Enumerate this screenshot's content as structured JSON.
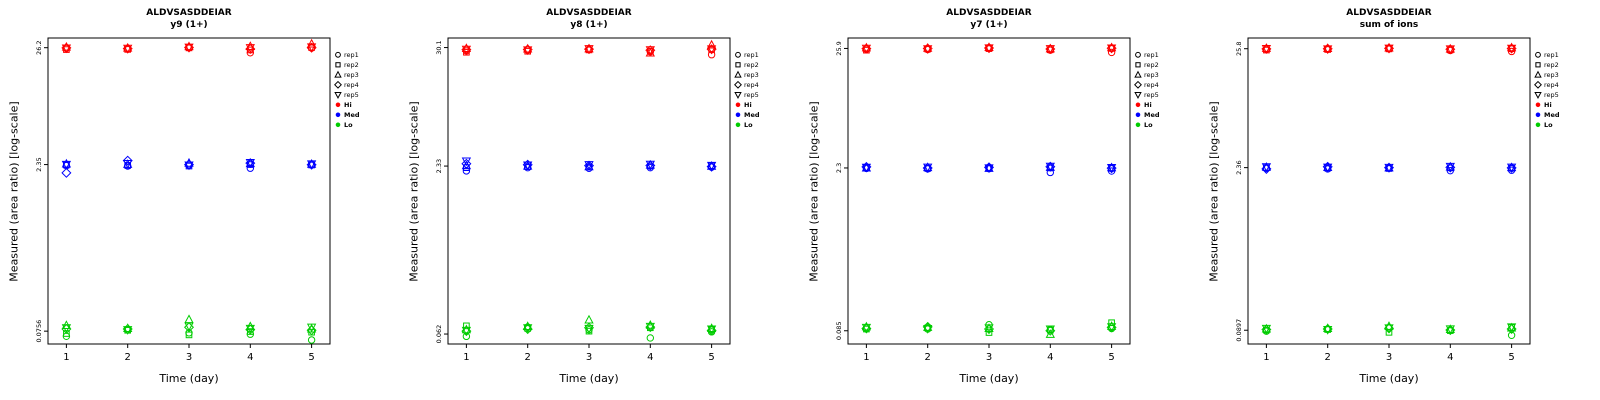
{
  "page": {
    "background": "#FFFFFF"
  },
  "legend": {
    "shape_items": [
      {
        "label": "rep1",
        "symbol": "circle"
      },
      {
        "label": "rep2",
        "symbol": "square"
      },
      {
        "label": "rep3",
        "symbol": "triangle-up"
      },
      {
        "label": "rep4",
        "symbol": "diamond"
      },
      {
        "label": "rep5",
        "symbol": "triangle-down"
      }
    ],
    "color_items": [
      {
        "label": "Hi",
        "color": "#FF0000"
      },
      {
        "label": "Med",
        "color": "#0000FF"
      },
      {
        "label": "Lo",
        "color": "#00CC00"
      }
    ]
  },
  "chart_data": [
    {
      "type": "scatter",
      "title": "ALDVSASDDEIAR",
      "subtitle": "y9 (1+)",
      "xlabel": "Time (day)",
      "ylabel": "Measured (area ratio) [log-scale]",
      "x": [
        1,
        2,
        3,
        4,
        5
      ],
      "xlim": [
        0.7,
        5.3
      ],
      "ylim": [
        0.058,
        32
      ],
      "y_scale": "log",
      "grid": false,
      "legend_position": "right",
      "y_ticks": [
        26.2,
        2.35,
        0.0756
      ],
      "y_tick_labels": [
        "26.2",
        "2.35",
        "0.0756"
      ],
      "groups": [
        {
          "name": "Hi",
          "color": "#FF0000",
          "reps": [
            {
              "name": "rep1",
              "symbol": "circle",
              "values": [
                25.8,
                25.6,
                26.4,
                23.6,
                26.0
              ]
            },
            {
              "name": "rep2",
              "symbol": "square",
              "values": [
                25.2,
                25.3,
                26.1,
                25.0,
                26.3
              ]
            },
            {
              "name": "rep3",
              "symbol": "triangle-up",
              "values": [
                26.5,
                26.0,
                26.8,
                26.9,
                28.3
              ]
            },
            {
              "name": "rep4",
              "symbol": "diamond",
              "values": [
                26.1,
                25.7,
                26.3,
                25.5,
                26.2
              ]
            },
            {
              "name": "rep5",
              "symbol": "triangle-down",
              "values": [
                26.0,
                25.9,
                26.5,
                26.2,
                26.6
              ]
            }
          ]
        },
        {
          "name": "Med",
          "color": "#0000FF",
          "reps": [
            {
              "name": "rep1",
              "symbol": "circle",
              "values": [
                2.3,
                2.28,
                2.32,
                2.18,
                2.36
              ]
            },
            {
              "name": "rep2",
              "symbol": "square",
              "values": [
                2.33,
                2.31,
                2.28,
                2.35,
                2.33
              ]
            },
            {
              "name": "rep3",
              "symbol": "triangle-up",
              "values": [
                2.38,
                2.36,
                2.42,
                2.4,
                2.37
              ]
            },
            {
              "name": "rep4",
              "symbol": "diamond",
              "values": [
                1.98,
                2.55,
                2.35,
                2.42,
                2.34
              ]
            },
            {
              "name": "rep5",
              "symbol": "triangle-down",
              "values": [
                2.36,
                2.4,
                2.33,
                2.45,
                2.38
              ]
            }
          ]
        },
        {
          "name": "Lo",
          "color": "#00CC00",
          "reps": [
            {
              "name": "rep1",
              "symbol": "circle",
              "values": [
                0.068,
                0.078,
                0.073,
                0.071,
                0.063
              ]
            },
            {
              "name": "rep2",
              "symbol": "square",
              "values": [
                0.072,
                0.077,
                0.07,
                0.075,
                0.074
              ]
            },
            {
              "name": "rep3",
              "symbol": "triangle-up",
              "values": [
                0.085,
                0.08,
                0.096,
                0.083,
                0.079
              ]
            },
            {
              "name": "rep4",
              "symbol": "diamond",
              "values": [
                0.079,
                0.079,
                0.082,
                0.078,
                0.077
              ]
            },
            {
              "name": "rep5",
              "symbol": "triangle-down",
              "values": [
                0.081,
                0.078,
                0.084,
                0.08,
                0.082
              ]
            }
          ]
        }
      ]
    },
    {
      "type": "scatter",
      "title": "ALDVSASDDEIAR",
      "subtitle": "y8 (1+)",
      "xlabel": "Time (day)",
      "ylabel": "Measured (area ratio) [log-scale]",
      "x": [
        1,
        2,
        3,
        4,
        5
      ],
      "xlim": [
        0.7,
        5.3
      ],
      "ylim": [
        0.05,
        37
      ],
      "y_scale": "log",
      "grid": false,
      "legend_position": "right",
      "y_ticks": [
        30.1,
        2.33,
        0.062
      ],
      "y_tick_labels": [
        "30.1",
        "2.33",
        "0.062"
      ],
      "groups": [
        {
          "name": "Hi",
          "color": "#FF0000",
          "reps": [
            {
              "name": "rep1",
              "symbol": "circle",
              "values": [
                28.0,
                28.5,
                29.0,
                27.5,
                25.8
              ]
            },
            {
              "name": "rep2",
              "symbol": "square",
              "values": [
                27.2,
                27.8,
                28.6,
                27.9,
                28.8
              ]
            },
            {
              "name": "rep3",
              "symbol": "triangle-up",
              "values": [
                29.5,
                29.2,
                29.3,
                26.8,
                31.8
              ]
            },
            {
              "name": "rep4",
              "symbol": "diamond",
              "values": [
                28.8,
                28.9,
                29.1,
                28.4,
                29.0
              ]
            },
            {
              "name": "rep5",
              "symbol": "triangle-down",
              "values": [
                29.0,
                28.6,
                29.4,
                28.7,
                29.2
              ]
            }
          ]
        },
        {
          "name": "Med",
          "color": "#0000FF",
          "reps": [
            {
              "name": "rep1",
              "symbol": "circle",
              "values": [
                2.1,
                2.25,
                2.22,
                2.25,
                2.28
              ]
            },
            {
              "name": "rep2",
              "symbol": "square",
              "values": [
                2.25,
                2.3,
                2.28,
                2.33,
                2.35
              ]
            },
            {
              "name": "rep3",
              "symbol": "triangle-up",
              "values": [
                2.35,
                2.33,
                2.3,
                2.38,
                2.32
              ]
            },
            {
              "name": "rep4",
              "symbol": "diamond",
              "values": [
                2.45,
                2.4,
                2.35,
                2.36,
                2.3
              ]
            },
            {
              "name": "rep5",
              "symbol": "triangle-down",
              "values": [
                2.6,
                2.38,
                2.4,
                2.42,
                2.36
              ]
            }
          ]
        },
        {
          "name": "Lo",
          "color": "#00CC00",
          "reps": [
            {
              "name": "rep1",
              "symbol": "circle",
              "values": [
                0.059,
                0.072,
                0.068,
                0.057,
                0.065
              ]
            },
            {
              "name": "rep2",
              "symbol": "square",
              "values": [
                0.074,
                0.07,
                0.066,
                0.071,
                0.068
              ]
            },
            {
              "name": "rep3",
              "symbol": "triangle-up",
              "values": [
                0.068,
                0.073,
                0.084,
                0.075,
                0.07
              ]
            },
            {
              "name": "rep4",
              "symbol": "diamond",
              "values": [
                0.066,
                0.069,
                0.071,
                0.072,
                0.067
              ]
            },
            {
              "name": "rep5",
              "symbol": "triangle-down",
              "values": [
                0.067,
                0.071,
                0.07,
                0.073,
                0.069
              ]
            }
          ]
        }
      ]
    },
    {
      "type": "scatter",
      "title": "ALDVSASDDEIAR",
      "subtitle": "y7 (1+)",
      "xlabel": "Time (day)",
      "ylabel": "Measured (area ratio) [log-scale]",
      "x": [
        1,
        2,
        3,
        4,
        5
      ],
      "xlim": [
        0.7,
        5.3
      ],
      "ylim": [
        0.065,
        32
      ],
      "y_scale": "log",
      "grid": false,
      "legend_position": "right",
      "y_ticks": [
        25.9,
        2.3,
        0.085
      ],
      "y_tick_labels": [
        "25.9",
        "2.3",
        "0.085"
      ],
      "groups": [
        {
          "name": "Hi",
          "color": "#FF0000",
          "reps": [
            {
              "name": "rep1",
              "symbol": "circle",
              "values": [
                25.5,
                25.3,
                26.3,
                25.0,
                23.9
              ]
            },
            {
              "name": "rep2",
              "symbol": "square",
              "values": [
                25.0,
                25.6,
                25.8,
                25.2,
                25.9
              ]
            },
            {
              "name": "rep3",
              "symbol": "triangle-up",
              "values": [
                26.2,
                26.0,
                26.4,
                25.7,
                26.3
              ]
            },
            {
              "name": "rep4",
              "symbol": "diamond",
              "values": [
                25.8,
                25.9,
                26.1,
                25.6,
                26.0
              ]
            },
            {
              "name": "rep5",
              "symbol": "triangle-down",
              "values": [
                26.0,
                25.7,
                26.2,
                25.8,
                26.1
              ]
            }
          ]
        },
        {
          "name": "Med",
          "color": "#0000FF",
          "reps": [
            {
              "name": "rep1",
              "symbol": "circle",
              "values": [
                2.28,
                2.26,
                2.27,
                2.1,
                2.16
              ]
            },
            {
              "name": "rep2",
              "symbol": "square",
              "values": [
                2.32,
                2.28,
                2.31,
                2.3,
                2.28
              ]
            },
            {
              "name": "rep3",
              "symbol": "triangle-up",
              "values": [
                2.3,
                2.32,
                2.28,
                2.33,
                2.31
              ]
            },
            {
              "name": "rep4",
              "symbol": "diamond",
              "values": [
                2.35,
                2.3,
                2.33,
                2.36,
                2.29
              ]
            },
            {
              "name": "rep5",
              "symbol": "triangle-down",
              "values": [
                2.33,
                2.34,
                2.3,
                2.38,
                2.32
              ]
            }
          ]
        },
        {
          "name": "Lo",
          "color": "#00CC00",
          "reps": [
            {
              "name": "rep1",
              "symbol": "circle",
              "values": [
                0.09,
                0.088,
                0.096,
                0.087,
                0.089
              ]
            },
            {
              "name": "rep2",
              "symbol": "square",
              "values": [
                0.088,
                0.09,
                0.082,
                0.086,
                0.1
              ]
            },
            {
              "name": "rep3",
              "symbol": "triangle-up",
              "values": [
                0.092,
                0.091,
                0.089,
                0.079,
                0.093
              ]
            },
            {
              "name": "rep4",
              "symbol": "diamond",
              "values": [
                0.089,
                0.092,
                0.088,
                0.085,
                0.091
              ]
            },
            {
              "name": "rep5",
              "symbol": "triangle-down",
              "values": [
                0.091,
                0.089,
                0.09,
                0.088,
                0.092
              ]
            }
          ]
        }
      ]
    },
    {
      "type": "scatter",
      "title": "ALDVSASDDEIAR",
      "subtitle": "sum of ions",
      "xlabel": "Time (day)",
      "ylabel": "Measured (area ratio) [log-scale]",
      "x": [
        1,
        2,
        3,
        4,
        5
      ],
      "xlim": [
        0.7,
        5.3
      ],
      "ylim": [
        0.068,
        32
      ],
      "y_scale": "log",
      "grid": false,
      "legend_position": "right",
      "y_ticks": [
        25.8,
        2.36,
        0.0897
      ],
      "y_tick_labels": [
        "25.8",
        "2.36",
        "0.0897"
      ],
      "groups": [
        {
          "name": "Hi",
          "color": "#FF0000",
          "reps": [
            {
              "name": "rep1",
              "symbol": "circle",
              "values": [
                25.5,
                25.6,
                25.9,
                24.9,
                24.4
              ]
            },
            {
              "name": "rep2",
              "symbol": "square",
              "values": [
                25.1,
                25.4,
                25.7,
                25.2,
                25.8
              ]
            },
            {
              "name": "rep3",
              "symbol": "triangle-up",
              "values": [
                26.0,
                25.9,
                26.2,
                25.6,
                26.3
              ]
            },
            {
              "name": "rep4",
              "symbol": "diamond",
              "values": [
                25.7,
                25.8,
                26.0,
                25.5,
                25.9
              ]
            },
            {
              "name": "rep5",
              "symbol": "triangle-down",
              "values": [
                25.9,
                25.7,
                26.1,
                25.7,
                26.0
              ]
            }
          ]
        },
        {
          "name": "Med",
          "color": "#0000FF",
          "reps": [
            {
              "name": "rep1",
              "symbol": "circle",
              "values": [
                2.33,
                2.3,
                2.34,
                2.22,
                2.24
              ]
            },
            {
              "name": "rep2",
              "symbol": "square",
              "values": [
                2.36,
                2.34,
                2.32,
                2.35,
                2.33
              ]
            },
            {
              "name": "rep3",
              "symbol": "triangle-up",
              "values": [
                2.38,
                2.37,
                2.35,
                2.39,
                2.36
              ]
            },
            {
              "name": "rep4",
              "symbol": "diamond",
              "values": [
                2.3,
                2.4,
                2.36,
                2.37,
                2.35
              ]
            },
            {
              "name": "rep5",
              "symbol": "triangle-down",
              "values": [
                2.4,
                2.38,
                2.37,
                2.42,
                2.38
              ]
            }
          ]
        },
        {
          "name": "Lo",
          "color": "#00CC00",
          "reps": [
            {
              "name": "rep1",
              "symbol": "circle",
              "values": [
                0.088,
                0.092,
                0.094,
                0.09,
                0.081
              ]
            },
            {
              "name": "rep2",
              "symbol": "square",
              "values": [
                0.09,
                0.091,
                0.086,
                0.089,
                0.095
              ]
            },
            {
              "name": "rep3",
              "symbol": "triangle-up",
              "values": [
                0.092,
                0.093,
                0.097,
                0.091,
                0.094
              ]
            },
            {
              "name": "rep4",
              "symbol": "diamond",
              "values": [
                0.091,
                0.092,
                0.093,
                0.09,
                0.092
              ]
            },
            {
              "name": "rep5",
              "symbol": "triangle-down",
              "values": [
                0.093,
                0.091,
                0.094,
                0.092,
                0.096
              ]
            }
          ]
        }
      ]
    }
  ]
}
